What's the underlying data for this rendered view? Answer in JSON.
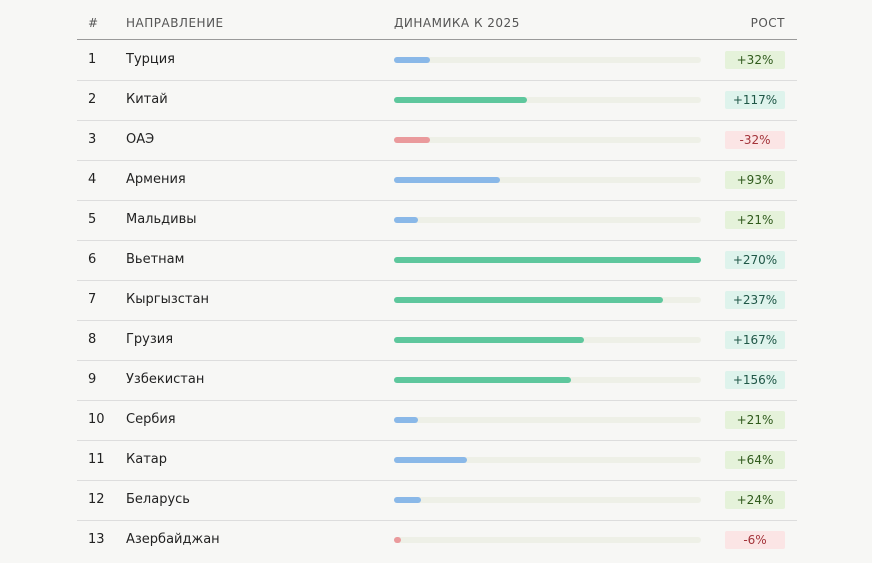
{
  "table": {
    "headers": [
      "#",
      "НАПРАВЛЕНИЕ",
      "ДИНАМИКА К 2025",
      "РОСТ"
    ],
    "rows": [
      {
        "rank": "1",
        "name": "Турция",
        "value": 32,
        "value_label": "+32%",
        "color": "#8ab8e8",
        "badge_color": "#e5f2da",
        "badge_text_color": "#2f5a1c"
      },
      {
        "rank": "2",
        "name": "Китай",
        "value": 117,
        "value_label": "+117%",
        "color": "#5ec79d",
        "badge_color": "#def3ec",
        "badge_text_color": "#1f5646"
      },
      {
        "rank": "3",
        "name": "ОАЭ",
        "value": -32,
        "value_label": "-32%",
        "color": "#ea9a9c",
        "badge_color": "#fbe5e5",
        "badge_text_color": "#a3343a"
      },
      {
        "rank": "4",
        "name": "Армения",
        "value": 93,
        "value_label": "+93%",
        "color": "#8ab8e8",
        "badge_color": "#e5f2da",
        "badge_text_color": "#2f5a1c"
      },
      {
        "rank": "5",
        "name": "Мальдивы",
        "value": 21,
        "value_label": "+21%",
        "color": "#8ab8e8",
        "badge_color": "#e5f2da",
        "badge_text_color": "#2f5a1c"
      },
      {
        "rank": "6",
        "name": "Вьетнам",
        "value": 270,
        "value_label": "+270%",
        "color": "#5ec79d",
        "badge_color": "#def3ec",
        "badge_text_color": "#1f5646"
      },
      {
        "rank": "7",
        "name": "Кыргызстан",
        "value": 237,
        "value_label": "+237%",
        "color": "#5ec79d",
        "badge_color": "#def3ec",
        "badge_text_color": "#1f5646"
      },
      {
        "rank": "8",
        "name": "Грузия",
        "value": 167,
        "value_label": "+167%",
        "color": "#5ec79d",
        "badge_color": "#def3ec",
        "badge_text_color": "#1f5646"
      },
      {
        "rank": "9",
        "name": "Узбекистан",
        "value": 156,
        "value_label": "+156%",
        "color": "#5ec79d",
        "badge_color": "#def3ec",
        "badge_text_color": "#1f5646"
      },
      {
        "rank": "10",
        "name": "Сербия",
        "value": 21,
        "value_label": "+21%",
        "color": "#8ab8e8",
        "badge_color": "#e5f2da",
        "badge_text_color": "#2f5a1c"
      },
      {
        "rank": "11",
        "name": "Катар",
        "value": 64,
        "value_label": "+64%",
        "color": "#8ab8e8",
        "badge_color": "#e5f2da",
        "badge_text_color": "#2f5a1c"
      },
      {
        "rank": "12",
        "name": "Беларусь",
        "value": 24,
        "value_label": "+24%",
        "color": "#8ab8e8",
        "badge_color": "#e5f2da",
        "badge_text_color": "#2f5a1c"
      },
      {
        "rank": "13",
        "name": "Азербайджан",
        "value": -6,
        "value_label": "-6%",
        "color": "#ea9a9c",
        "badge_color": "#fbe5e5",
        "badge_text_color": "#a3343a"
      }
    ]
  }
}
